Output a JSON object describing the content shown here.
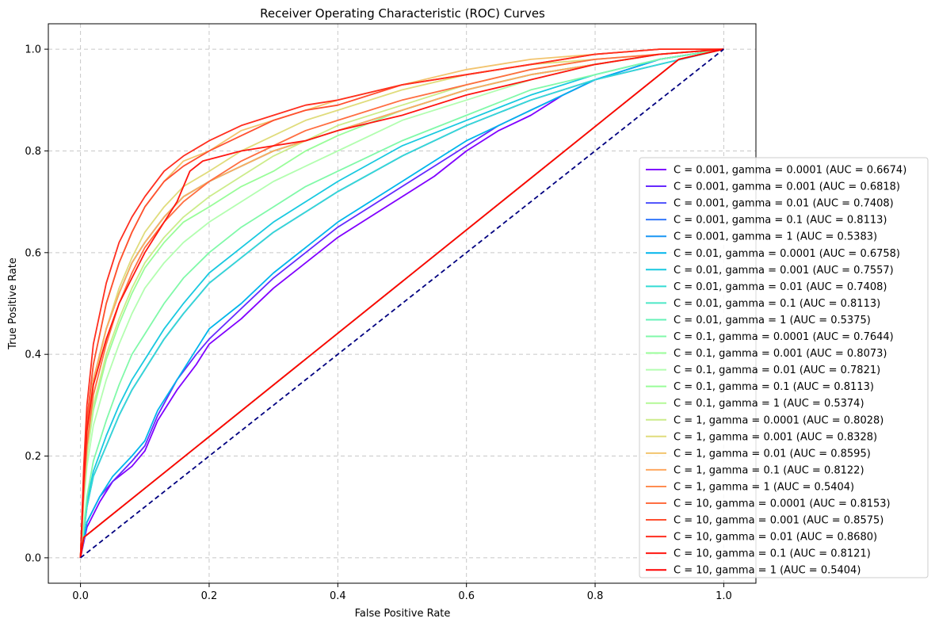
{
  "chart_data": {
    "type": "line",
    "title": "Receiver Operating Characteristic (ROC) Curves",
    "xlabel": "False Positive Rate",
    "ylabel": "True Positive Rate",
    "xlim": [
      -0.05,
      1.05
    ],
    "ylim": [
      -0.05,
      1.05
    ],
    "x_ticks": [
      0.0,
      0.2,
      0.4,
      0.6,
      0.8,
      1.0
    ],
    "y_ticks": [
      0.0,
      0.2,
      0.4,
      0.6,
      0.8,
      1.0
    ],
    "x_tick_labels": [
      "0.0",
      "0.2",
      "0.4",
      "0.6",
      "0.8",
      "1.0"
    ],
    "y_tick_labels": [
      "0.0",
      "0.2",
      "0.4",
      "0.6",
      "0.8",
      "1.0"
    ],
    "grid": true,
    "legend_position": "right",
    "reference_line": {
      "x": [
        0,
        1
      ],
      "y": [
        0,
        1
      ],
      "color": "#000080",
      "style": "dashed"
    },
    "series": [
      {
        "name": "C = 0.001, gamma = 0.0001 (AUC = 0.6674)",
        "color": "#8000ff",
        "x": [
          0,
          0.01,
          0.03,
          0.05,
          0.08,
          0.1,
          0.12,
          0.15,
          0.18,
          0.2,
          0.25,
          0.3,
          0.35,
          0.4,
          0.45,
          0.5,
          0.55,
          0.6,
          0.65,
          0.7,
          0.75,
          0.8,
          0.85,
          0.9,
          0.95,
          1.0
        ],
        "y": [
          0,
          0.06,
          0.11,
          0.15,
          0.18,
          0.21,
          0.27,
          0.33,
          0.38,
          0.42,
          0.47,
          0.53,
          0.58,
          0.63,
          0.67,
          0.71,
          0.75,
          0.8,
          0.84,
          0.87,
          0.91,
          0.94,
          0.96,
          0.98,
          0.99,
          1.0
        ]
      },
      {
        "name": "C = 0.001, gamma = 0.001 (AUC = 0.6818)",
        "color": "#6629fe",
        "x": [
          0,
          0.01,
          0.03,
          0.05,
          0.08,
          0.1,
          0.12,
          0.15,
          0.18,
          0.2,
          0.25,
          0.3,
          0.35,
          0.4,
          0.45,
          0.5,
          0.55,
          0.6,
          0.65,
          0.7,
          0.75,
          0.8,
          0.85,
          0.9,
          0.95,
          1.0
        ],
        "y": [
          0,
          0.07,
          0.12,
          0.15,
          0.19,
          0.22,
          0.28,
          0.35,
          0.4,
          0.43,
          0.49,
          0.55,
          0.6,
          0.65,
          0.69,
          0.73,
          0.77,
          0.81,
          0.85,
          0.88,
          0.91,
          0.94,
          0.96,
          0.98,
          0.99,
          1.0
        ]
      },
      {
        "name": "C = 0.001, gamma = 0.01 (AUC = 0.7408)",
        "color": "#4c50fc",
        "x": [
          0,
          0.01,
          0.02,
          0.04,
          0.06,
          0.08,
          0.1,
          0.13,
          0.16,
          0.2,
          0.25,
          0.3,
          0.35,
          0.4,
          0.5,
          0.6,
          0.7,
          0.8,
          0.9,
          1.0
        ],
        "y": [
          0,
          0.1,
          0.16,
          0.22,
          0.28,
          0.33,
          0.37,
          0.43,
          0.48,
          0.54,
          0.59,
          0.64,
          0.68,
          0.72,
          0.79,
          0.85,
          0.9,
          0.94,
          0.97,
          1.0
        ]
      },
      {
        "name": "C = 0.001, gamma = 0.1 (AUC = 0.8113)",
        "color": "#3377fb",
        "x": [
          0,
          0.005,
          0.01,
          0.02,
          0.04,
          0.06,
          0.08,
          0.1,
          0.13,
          0.16,
          0.2,
          0.25,
          0.3,
          0.35,
          0.4,
          0.5,
          0.6,
          0.7,
          0.8,
          0.9,
          1.0
        ],
        "y": [
          0,
          0.15,
          0.25,
          0.35,
          0.45,
          0.52,
          0.58,
          0.62,
          0.67,
          0.71,
          0.74,
          0.77,
          0.8,
          0.82,
          0.84,
          0.88,
          0.92,
          0.95,
          0.97,
          0.99,
          1.0
        ]
      },
      {
        "name": "C = 0.001, gamma = 1 (AUC = 0.5383)",
        "color": "#1996f3",
        "x": [
          0,
          0.005,
          0.93,
          1.0
        ],
        "y": [
          0,
          0.04,
          0.98,
          1.0
        ]
      },
      {
        "name": "C = 0.01, gamma = 0.0001 (AUC = 0.6758)",
        "color": "#00b5eb",
        "x": [
          0,
          0.01,
          0.03,
          0.05,
          0.08,
          0.1,
          0.12,
          0.15,
          0.18,
          0.2,
          0.25,
          0.3,
          0.35,
          0.4,
          0.45,
          0.5,
          0.55,
          0.6,
          0.65,
          0.7,
          0.75,
          0.8,
          0.85,
          0.9,
          0.95,
          1.0
        ],
        "y": [
          0,
          0.07,
          0.12,
          0.16,
          0.2,
          0.23,
          0.29,
          0.35,
          0.41,
          0.45,
          0.5,
          0.56,
          0.61,
          0.66,
          0.7,
          0.74,
          0.78,
          0.82,
          0.85,
          0.88,
          0.91,
          0.94,
          0.96,
          0.98,
          0.99,
          1.0
        ]
      },
      {
        "name": "C = 0.01, gamma = 0.001 (AUC = 0.7557)",
        "color": "#19c9e0",
        "x": [
          0,
          0.01,
          0.02,
          0.04,
          0.06,
          0.08,
          0.1,
          0.13,
          0.16,
          0.2,
          0.25,
          0.3,
          0.35,
          0.4,
          0.5,
          0.6,
          0.7,
          0.8,
          0.9,
          1.0
        ],
        "y": [
          0,
          0.11,
          0.17,
          0.24,
          0.3,
          0.35,
          0.39,
          0.45,
          0.5,
          0.56,
          0.61,
          0.66,
          0.7,
          0.74,
          0.81,
          0.86,
          0.91,
          0.95,
          0.98,
          1.0
        ]
      },
      {
        "name": "C = 0.01, gamma = 0.01 (AUC = 0.7408)",
        "color": "#33dbd4",
        "x": [
          0,
          0.01,
          0.02,
          0.04,
          0.06,
          0.08,
          0.1,
          0.13,
          0.16,
          0.2,
          0.25,
          0.3,
          0.35,
          0.4,
          0.5,
          0.6,
          0.7,
          0.8,
          0.9,
          1.0
        ],
        "y": [
          0,
          0.1,
          0.16,
          0.22,
          0.28,
          0.33,
          0.37,
          0.43,
          0.48,
          0.54,
          0.59,
          0.64,
          0.68,
          0.72,
          0.79,
          0.85,
          0.9,
          0.94,
          0.97,
          1.0
        ]
      },
      {
        "name": "C = 0.01, gamma = 0.1 (AUC = 0.8113)",
        "color": "#4ce8c6",
        "x": [
          0,
          0.005,
          0.01,
          0.02,
          0.04,
          0.06,
          0.08,
          0.1,
          0.13,
          0.16,
          0.2,
          0.25,
          0.3,
          0.35,
          0.4,
          0.5,
          0.6,
          0.7,
          0.8,
          0.9,
          1.0
        ],
        "y": [
          0,
          0.15,
          0.25,
          0.35,
          0.45,
          0.52,
          0.58,
          0.62,
          0.67,
          0.71,
          0.74,
          0.77,
          0.8,
          0.82,
          0.84,
          0.88,
          0.92,
          0.95,
          0.97,
          0.99,
          1.0
        ]
      },
      {
        "name": "C = 0.01, gamma = 1 (AUC = 0.5375)",
        "color": "#66f2b8",
        "x": [
          0,
          0.005,
          0.93,
          1.0
        ],
        "y": [
          0,
          0.04,
          0.98,
          1.0
        ]
      },
      {
        "name": "C = 0.1, gamma = 0.0001 (AUC = 0.7644)",
        "color": "#80f9a9",
        "x": [
          0,
          0.01,
          0.02,
          0.04,
          0.06,
          0.08,
          0.1,
          0.13,
          0.16,
          0.2,
          0.25,
          0.3,
          0.35,
          0.4,
          0.5,
          0.6,
          0.7,
          0.8,
          0.9,
          1.0
        ],
        "y": [
          0,
          0.12,
          0.19,
          0.27,
          0.34,
          0.4,
          0.44,
          0.5,
          0.55,
          0.6,
          0.65,
          0.69,
          0.73,
          0.76,
          0.82,
          0.87,
          0.92,
          0.95,
          0.98,
          1.0
        ]
      },
      {
        "name": "C = 0.1, gamma = 0.001 (AUC = 0.8073)",
        "color": "#99fd99",
        "x": [
          0,
          0.005,
          0.01,
          0.02,
          0.04,
          0.06,
          0.08,
          0.1,
          0.13,
          0.16,
          0.2,
          0.25,
          0.3,
          0.35,
          0.4,
          0.5,
          0.6,
          0.7,
          0.8,
          0.9,
          1.0
        ],
        "y": [
          0,
          0.12,
          0.2,
          0.29,
          0.39,
          0.46,
          0.52,
          0.57,
          0.62,
          0.66,
          0.69,
          0.73,
          0.76,
          0.8,
          0.83,
          0.88,
          0.92,
          0.95,
          0.97,
          0.99,
          1.0
        ]
      },
      {
        "name": "C = 0.1, gamma = 0.01 (AUC = 0.7821)",
        "color": "#b3feb0",
        "x": [
          0,
          0.005,
          0.01,
          0.02,
          0.04,
          0.06,
          0.08,
          0.1,
          0.13,
          0.16,
          0.2,
          0.25,
          0.3,
          0.35,
          0.4,
          0.5,
          0.6,
          0.7,
          0.8,
          0.9,
          1.0
        ],
        "y": [
          0,
          0.11,
          0.18,
          0.26,
          0.35,
          0.42,
          0.48,
          0.53,
          0.58,
          0.62,
          0.66,
          0.7,
          0.74,
          0.77,
          0.8,
          0.86,
          0.9,
          0.94,
          0.97,
          0.99,
          1.0
        ]
      },
      {
        "name": "C = 0.1, gamma = 0.1 (AUC = 0.8113)",
        "color": "#99fd99",
        "x": [
          0,
          0.005,
          0.01,
          0.02,
          0.04,
          0.06,
          0.08,
          0.1,
          0.13,
          0.16,
          0.2,
          0.25,
          0.3,
          0.35,
          0.4,
          0.5,
          0.6,
          0.7,
          0.8,
          0.9,
          1.0
        ],
        "y": [
          0,
          0.15,
          0.25,
          0.35,
          0.45,
          0.52,
          0.58,
          0.62,
          0.67,
          0.71,
          0.74,
          0.77,
          0.8,
          0.82,
          0.84,
          0.88,
          0.92,
          0.95,
          0.97,
          0.99,
          1.0
        ]
      },
      {
        "name": "C = 0.1, gamma = 1 (AUC = 0.5374)",
        "color": "#b3f996",
        "x": [
          0,
          0.005,
          0.93,
          1.0
        ],
        "y": [
          0,
          0.04,
          0.98,
          1.0
        ]
      },
      {
        "name": "C = 1, gamma = 0.0001 (AUC = 0.8028)",
        "color": "#ccec8a",
        "x": [
          0,
          0.005,
          0.01,
          0.02,
          0.04,
          0.06,
          0.08,
          0.1,
          0.13,
          0.16,
          0.2,
          0.25,
          0.3,
          0.35,
          0.4,
          0.5,
          0.6,
          0.7,
          0.8,
          0.9,
          1.0
        ],
        "y": [
          0,
          0.12,
          0.2,
          0.3,
          0.4,
          0.47,
          0.53,
          0.58,
          0.63,
          0.67,
          0.71,
          0.75,
          0.79,
          0.82,
          0.85,
          0.89,
          0.93,
          0.96,
          0.98,
          0.99,
          1.0
        ]
      },
      {
        "name": "C = 1, gamma = 0.001 (AUC = 0.8328)",
        "color": "#e0dc7c",
        "x": [
          0,
          0.005,
          0.01,
          0.02,
          0.04,
          0.06,
          0.08,
          0.1,
          0.13,
          0.16,
          0.2,
          0.25,
          0.3,
          0.35,
          0.4,
          0.5,
          0.6,
          0.7,
          0.8,
          0.9,
          1.0
        ],
        "y": [
          0,
          0.14,
          0.23,
          0.34,
          0.45,
          0.53,
          0.59,
          0.64,
          0.69,
          0.73,
          0.76,
          0.8,
          0.83,
          0.86,
          0.88,
          0.92,
          0.95,
          0.97,
          0.98,
          0.99,
          1.0
        ]
      },
      {
        "name": "C = 1, gamma = 0.01 (AUC = 0.8595)",
        "color": "#f2c46e",
        "x": [
          0,
          0.005,
          0.01,
          0.02,
          0.04,
          0.06,
          0.08,
          0.1,
          0.13,
          0.16,
          0.2,
          0.25,
          0.3,
          0.35,
          0.4,
          0.5,
          0.6,
          0.7,
          0.8,
          0.9,
          1.0
        ],
        "y": [
          0,
          0.16,
          0.27,
          0.38,
          0.5,
          0.58,
          0.64,
          0.69,
          0.74,
          0.78,
          0.8,
          0.84,
          0.86,
          0.88,
          0.9,
          0.93,
          0.96,
          0.98,
          0.99,
          1.0,
          1.0
        ]
      },
      {
        "name": "C = 1, gamma = 0.1 (AUC = 0.8122)",
        "color": "#ffa860",
        "x": [
          0,
          0.005,
          0.01,
          0.02,
          0.04,
          0.06,
          0.08,
          0.1,
          0.13,
          0.16,
          0.2,
          0.25,
          0.3,
          0.35,
          0.4,
          0.5,
          0.6,
          0.7,
          0.8,
          0.9,
          1.0
        ],
        "y": [
          0,
          0.15,
          0.25,
          0.35,
          0.45,
          0.52,
          0.58,
          0.62,
          0.67,
          0.71,
          0.74,
          0.77,
          0.8,
          0.82,
          0.84,
          0.88,
          0.92,
          0.95,
          0.97,
          0.99,
          1.0
        ]
      },
      {
        "name": "C = 1, gamma = 1 (AUC = 0.5404)",
        "color": "#ff8c51",
        "x": [
          0,
          0.005,
          0.93,
          1.0
        ],
        "y": [
          0,
          0.04,
          0.98,
          1.0
        ]
      },
      {
        "name": "C = 10, gamma = 0.0001 (AUC = 0.8153)",
        "color": "#ff6e41",
        "x": [
          0,
          0.005,
          0.01,
          0.02,
          0.04,
          0.06,
          0.08,
          0.1,
          0.13,
          0.16,
          0.2,
          0.25,
          0.3,
          0.35,
          0.4,
          0.5,
          0.6,
          0.7,
          0.8,
          0.9,
          1.0
        ],
        "y": [
          0,
          0.13,
          0.22,
          0.32,
          0.42,
          0.5,
          0.56,
          0.61,
          0.66,
          0.7,
          0.74,
          0.78,
          0.81,
          0.84,
          0.86,
          0.9,
          0.93,
          0.96,
          0.98,
          0.99,
          1.0
        ]
      },
      {
        "name": "C = 10, gamma = 0.001 (AUC = 0.8575)",
        "color": "#ff4f30",
        "x": [
          0,
          0.005,
          0.01,
          0.02,
          0.04,
          0.06,
          0.08,
          0.1,
          0.13,
          0.16,
          0.2,
          0.25,
          0.3,
          0.35,
          0.4,
          0.5,
          0.6,
          0.7,
          0.8,
          0.9,
          1.0
        ],
        "y": [
          0,
          0.16,
          0.27,
          0.38,
          0.5,
          0.58,
          0.64,
          0.69,
          0.74,
          0.77,
          0.8,
          0.83,
          0.86,
          0.88,
          0.89,
          0.93,
          0.95,
          0.97,
          0.99,
          1.0,
          1.0
        ]
      },
      {
        "name": "C = 10, gamma = 0.01 (AUC = 0.8680)",
        "color": "#ff2e1f",
        "x": [
          0,
          0.005,
          0.01,
          0.02,
          0.04,
          0.06,
          0.08,
          0.1,
          0.13,
          0.16,
          0.2,
          0.25,
          0.3,
          0.35,
          0.4,
          0.5,
          0.6,
          0.7,
          0.8,
          0.9,
          1.0
        ],
        "y": [
          0,
          0.18,
          0.3,
          0.42,
          0.54,
          0.62,
          0.67,
          0.71,
          0.76,
          0.79,
          0.82,
          0.85,
          0.87,
          0.89,
          0.9,
          0.93,
          0.95,
          0.97,
          0.99,
          1.0,
          1.0
        ]
      },
      {
        "name": "C = 10, gamma = 0.1 (AUC = 0.8121)",
        "color": "#ff1610",
        "x": [
          0,
          0.005,
          0.01,
          0.02,
          0.04,
          0.06,
          0.08,
          0.1,
          0.13,
          0.15,
          0.17,
          0.19,
          0.22,
          0.25,
          0.3,
          0.35,
          0.4,
          0.5,
          0.6,
          0.7,
          0.8,
          0.9,
          1.0
        ],
        "y": [
          0,
          0.15,
          0.25,
          0.34,
          0.43,
          0.5,
          0.55,
          0.6,
          0.66,
          0.7,
          0.76,
          0.78,
          0.79,
          0.8,
          0.81,
          0.82,
          0.84,
          0.87,
          0.91,
          0.94,
          0.97,
          0.99,
          1.0
        ]
      },
      {
        "name": "C = 10, gamma = 1 (AUC = 0.5404)",
        "color": "#ff0000",
        "x": [
          0,
          0.005,
          0.93,
          1.0
        ],
        "y": [
          0,
          0.04,
          0.98,
          1.0
        ]
      }
    ]
  }
}
